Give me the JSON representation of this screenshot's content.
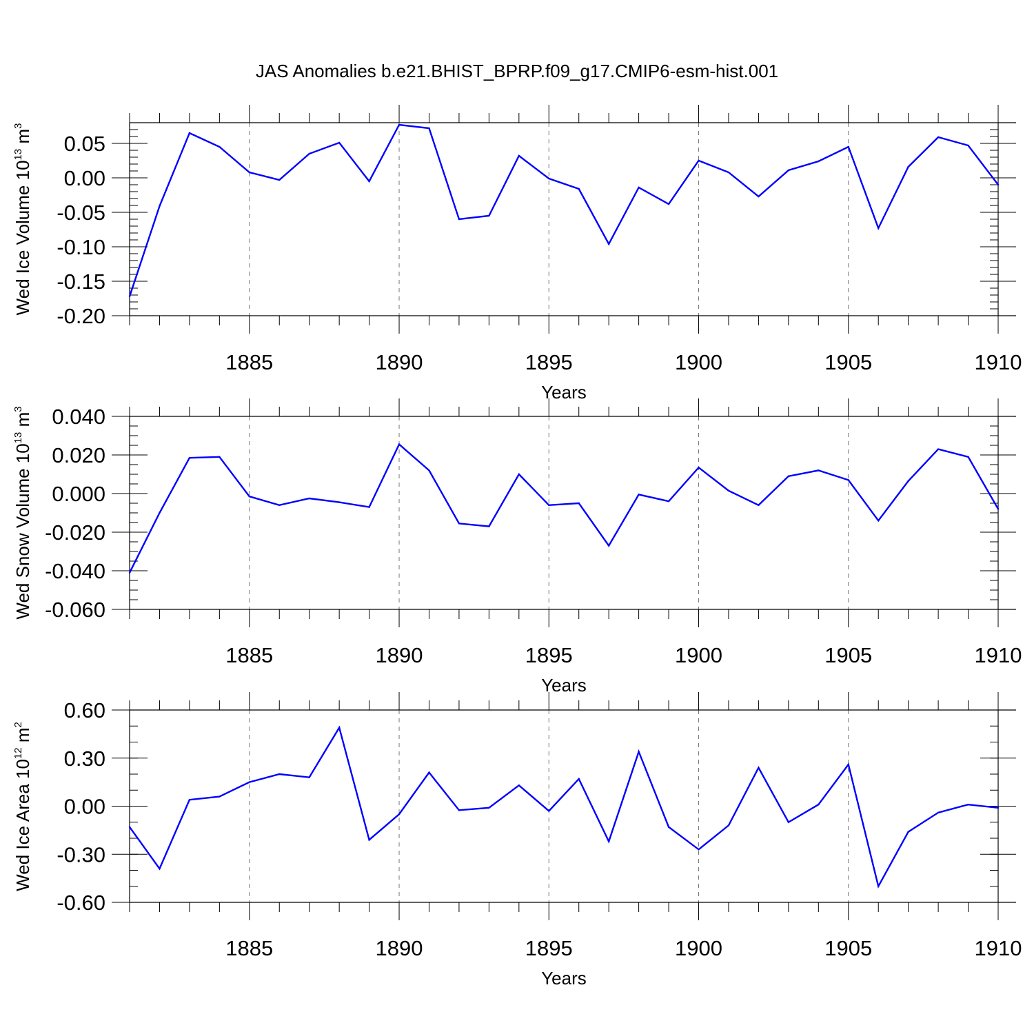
{
  "title": "JAS Anomalies b.e21.BHIST_BPRP.f09_g17.CMIP6-esm-hist.001",
  "colors": {
    "line": "#0000ff",
    "axis": "#000000",
    "grid": "#777777"
  },
  "chart_data": [
    {
      "type": "line",
      "xlabel": "Years",
      "ylabel": {
        "prefix": "Wed Ice Volume 10",
        "exponent": "13",
        "unit": " m",
        "unit_exp": "3"
      },
      "xlim": [
        1881,
        1910
      ],
      "ylim": [
        -0.2,
        0.08
      ],
      "xticks": [
        1885,
        1890,
        1895,
        1900,
        1905,
        1910
      ],
      "xtick_labels": [
        "1885",
        "1890",
        "1895",
        "1900",
        "1905",
        "1910"
      ],
      "yticks": [
        -0.2,
        -0.15,
        -0.1,
        -0.05,
        0.0,
        0.05
      ],
      "ytick_labels": [
        "-0.20",
        "-0.15",
        "-0.10",
        "-0.05",
        "0.00",
        "0.05"
      ],
      "yminor_step": 0.01,
      "grid": "dashed vertical at major x ticks",
      "x": [
        1881,
        1882,
        1883,
        1884,
        1885,
        1886,
        1887,
        1888,
        1889,
        1890,
        1891,
        1892,
        1893,
        1894,
        1895,
        1896,
        1897,
        1898,
        1899,
        1900,
        1901,
        1902,
        1903,
        1904,
        1905,
        1906,
        1907,
        1908,
        1909,
        1910
      ],
      "values": [
        -0.172,
        -0.041,
        0.065,
        0.045,
        0.008,
        -0.003,
        0.035,
        0.051,
        -0.005,
        0.077,
        0.072,
        -0.06,
        -0.055,
        0.032,
        -0.001,
        -0.016,
        -0.096,
        -0.014,
        -0.038,
        0.025,
        0.008,
        -0.027,
        0.011,
        0.024,
        0.045,
        -0.073,
        0.016,
        0.059,
        0.047,
        -0.01
      ]
    },
    {
      "type": "line",
      "xlabel": "Years",
      "ylabel": {
        "prefix": "Wed Snow Volume 10",
        "exponent": "13",
        "unit": " m",
        "unit_exp": "3"
      },
      "xlim": [
        1881,
        1910
      ],
      "ylim": [
        -0.06,
        0.04
      ],
      "xticks": [
        1885,
        1890,
        1895,
        1900,
        1905,
        1910
      ],
      "xtick_labels": [
        "1885",
        "1890",
        "1895",
        "1900",
        "1905",
        "1910"
      ],
      "yticks": [
        -0.06,
        -0.04,
        -0.02,
        0.0,
        0.02,
        0.04
      ],
      "ytick_labels": [
        "-0.060",
        "-0.040",
        "-0.020",
        "0.000",
        "0.020",
        "0.040"
      ],
      "yminor_step": 0.005,
      "grid": "dashed vertical at major x ticks",
      "x": [
        1881,
        1882,
        1883,
        1884,
        1885,
        1886,
        1887,
        1888,
        1889,
        1890,
        1891,
        1892,
        1893,
        1894,
        1895,
        1896,
        1897,
        1898,
        1899,
        1900,
        1901,
        1902,
        1903,
        1904,
        1905,
        1906,
        1907,
        1908,
        1909,
        1910
      ],
      "values": [
        -0.041,
        -0.01,
        0.0185,
        0.019,
        -0.0015,
        -0.006,
        -0.0025,
        -0.0045,
        -0.007,
        0.0255,
        0.012,
        -0.0155,
        -0.017,
        0.01,
        -0.006,
        -0.005,
        -0.027,
        -0.0005,
        -0.004,
        0.0135,
        0.0015,
        -0.006,
        0.009,
        0.012,
        0.007,
        -0.014,
        0.0065,
        0.023,
        0.019,
        -0.008
      ]
    },
    {
      "type": "line",
      "xlabel": "Years",
      "ylabel": {
        "prefix": "Wed Ice Area 10",
        "exponent": "12",
        "unit": " m",
        "unit_exp": "2"
      },
      "xlim": [
        1881,
        1910
      ],
      "ylim": [
        -0.6,
        0.6
      ],
      "xticks": [
        1885,
        1890,
        1895,
        1900,
        1905,
        1910
      ],
      "xtick_labels": [
        "1885",
        "1890",
        "1895",
        "1900",
        "1905",
        "1910"
      ],
      "yticks": [
        -0.6,
        -0.3,
        0.0,
        0.3,
        0.6
      ],
      "ytick_labels": [
        "-0.60",
        "-0.30",
        "0.00",
        "0.30",
        "0.60"
      ],
      "yminor_step": 0.1,
      "grid": "dashed vertical at major x ticks",
      "x": [
        1881,
        1882,
        1883,
        1884,
        1885,
        1886,
        1887,
        1888,
        1889,
        1890,
        1891,
        1892,
        1893,
        1894,
        1895,
        1896,
        1897,
        1898,
        1899,
        1900,
        1901,
        1902,
        1903,
        1904,
        1905,
        1906,
        1907,
        1908,
        1909,
        1910
      ],
      "values": [
        -0.13,
        -0.39,
        0.04,
        0.06,
        0.15,
        0.2,
        0.18,
        0.49,
        -0.21,
        -0.05,
        0.21,
        -0.025,
        -0.01,
        0.13,
        -0.03,
        0.17,
        -0.22,
        0.34,
        -0.13,
        -0.27,
        -0.12,
        0.24,
        -0.1,
        0.01,
        0.26,
        -0.5,
        -0.16,
        -0.04,
        0.01,
        -0.01
      ]
    }
  ]
}
